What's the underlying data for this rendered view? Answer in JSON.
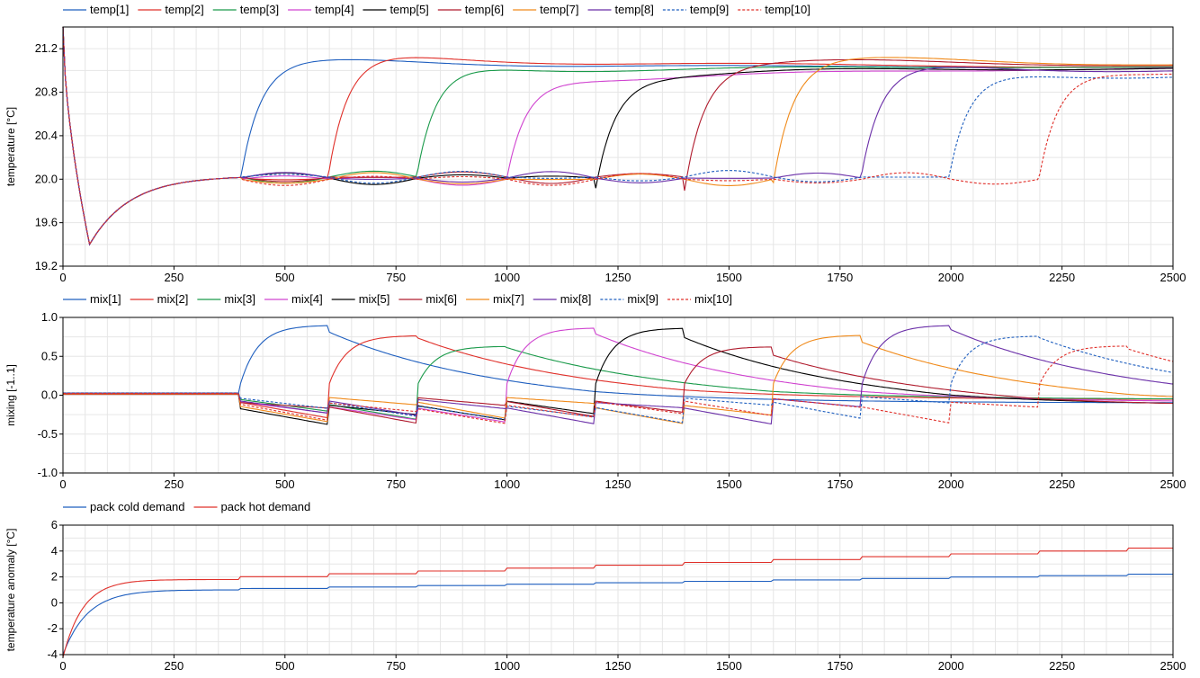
{
  "chart_data": [
    {
      "type": "line",
      "ylabel": "temperature [°C]",
      "xlim": [
        0,
        2500
      ],
      "ylim": [
        19.2,
        21.4
      ],
      "xticks": [
        0,
        250,
        500,
        750,
        1000,
        1250,
        1500,
        1750,
        2000,
        2250,
        2500
      ],
      "yticks": [
        19.2,
        19.6,
        20.0,
        20.4,
        20.8,
        21.2
      ],
      "ytick_labels": [
        "19.2",
        "19.6",
        "20.0",
        "20.4",
        "20.8",
        "21.2"
      ],
      "grid": true,
      "legend": "top-left",
      "series": [
        {
          "name": "temp[1]",
          "color": "#1f5fbf",
          "dash": false
        },
        {
          "name": "temp[2]",
          "color": "#e0302a",
          "dash": false
        },
        {
          "name": "temp[3]",
          "color": "#1a9a4a",
          "dash": false
        },
        {
          "name": "temp[4]",
          "color": "#d044d0",
          "dash": false
        },
        {
          "name": "temp[5]",
          "color": "#000000",
          "dash": false
        },
        {
          "name": "temp[6]",
          "color": "#b01c2e",
          "dash": false
        },
        {
          "name": "temp[7]",
          "color": "#f08a1a",
          "dash": false
        },
        {
          "name": "temp[8]",
          "color": "#6a2fa8",
          "dash": false
        },
        {
          "name": "temp[9]",
          "color": "#1f5fbf",
          "dash": true
        },
        {
          "name": "temp[10]",
          "color": "#e0302a",
          "dash": true
        }
      ]
    },
    {
      "type": "line",
      "ylabel": "mixing [-1..1]",
      "xlim": [
        0,
        2500
      ],
      "ylim": [
        -1.0,
        1.0
      ],
      "xticks": [
        0,
        250,
        500,
        750,
        1000,
        1250,
        1500,
        1750,
        2000,
        2250,
        2500
      ],
      "yticks": [
        -1.0,
        -0.5,
        0.0,
        0.5,
        1.0
      ],
      "ytick_labels": [
        "-1.0",
        "-0.5",
        "0.0",
        "0.5",
        "1.0"
      ],
      "grid": true,
      "legend": "top-left",
      "series": [
        {
          "name": "mix[1]",
          "color": "#1f5fbf",
          "dash": false
        },
        {
          "name": "mix[2]",
          "color": "#e0302a",
          "dash": false
        },
        {
          "name": "mix[3]",
          "color": "#1a9a4a",
          "dash": false
        },
        {
          "name": "mix[4]",
          "color": "#d044d0",
          "dash": false
        },
        {
          "name": "mix[5]",
          "color": "#000000",
          "dash": false
        },
        {
          "name": "mix[6]",
          "color": "#b01c2e",
          "dash": false
        },
        {
          "name": "mix[7]",
          "color": "#f08a1a",
          "dash": false
        },
        {
          "name": "mix[8]",
          "color": "#6a2fa8",
          "dash": false
        },
        {
          "name": "mix[9]",
          "color": "#1f5fbf",
          "dash": true
        },
        {
          "name": "mix[10]",
          "color": "#e0302a",
          "dash": true
        }
      ]
    },
    {
      "type": "line",
      "ylabel": "temperature anomaly [°C]",
      "xlim": [
        0,
        2500
      ],
      "ylim": [
        -4,
        6
      ],
      "xticks": [
        0,
        250,
        500,
        750,
        1000,
        1250,
        1500,
        1750,
        2000,
        2250,
        2500
      ],
      "yticks": [
        -4,
        -2,
        0,
        2,
        4,
        6
      ],
      "ytick_labels": [
        "-4",
        "-2",
        "0",
        "2",
        "4",
        "6"
      ],
      "grid": true,
      "legend": "top-left",
      "series": [
        {
          "name": "pack cold demand",
          "color": "#1f5fbf",
          "dash": false
        },
        {
          "name": "pack hot demand",
          "color": "#e0302a",
          "dash": false
        }
      ]
    }
  ]
}
